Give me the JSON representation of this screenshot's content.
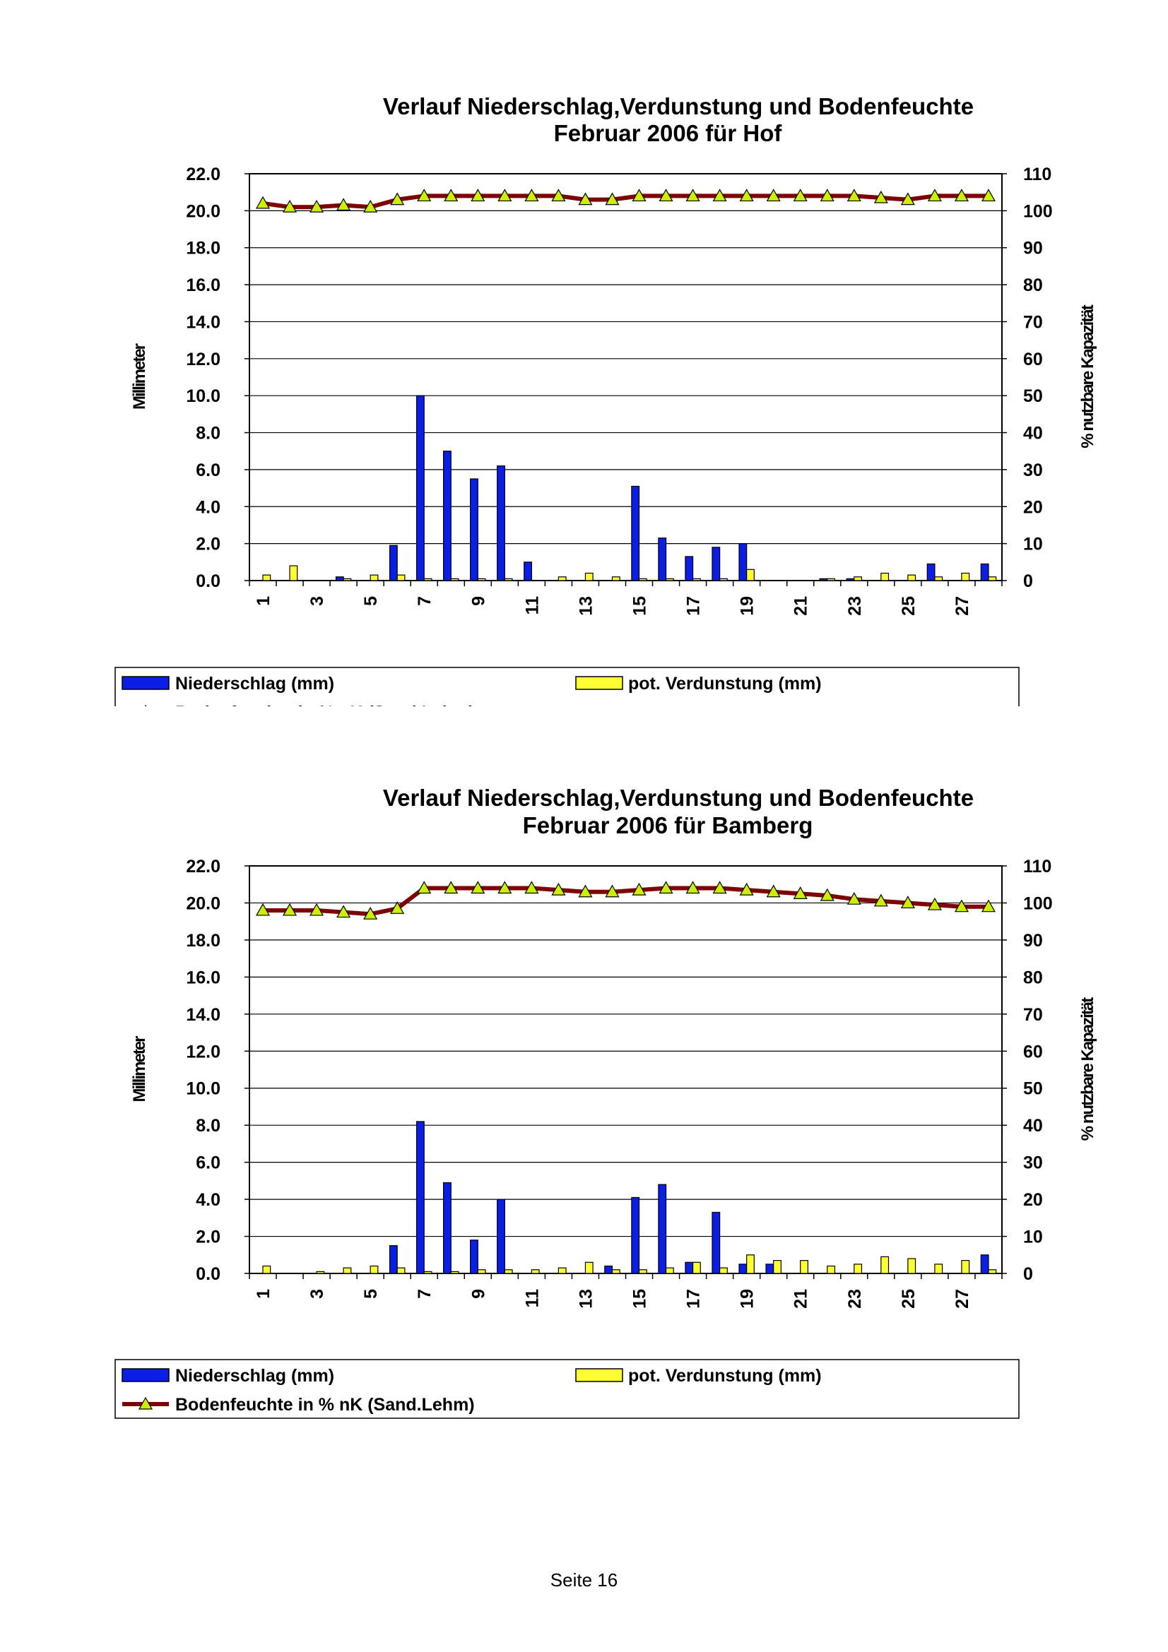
{
  "page": {
    "footer": "Seite 16"
  },
  "chart_data": [
    {
      "type": "bar",
      "title": "Verlauf Niederschlag,Verdunstung und Bodenfeuchte",
      "subtitle": "Februar 2006 für Hof",
      "ylabel": "Millimeter",
      "y2label": "% nutzbare Kapazität",
      "ylim": [
        0,
        22
      ],
      "y2lim": [
        0,
        110
      ],
      "yticks": [
        "22.0",
        "20.0",
        "18.0",
        "16.0",
        "14.0",
        "12.0",
        "10.0",
        "8.0",
        "6.0",
        "4.0",
        "2.0",
        "0.0"
      ],
      "y2ticks": [
        "110",
        "100",
        "90",
        "80",
        "70",
        "60",
        "50",
        "40",
        "30",
        "20",
        "10",
        "0"
      ],
      "categories": [
        1,
        2,
        3,
        4,
        5,
        6,
        7,
        8,
        9,
        10,
        11,
        12,
        13,
        14,
        15,
        16,
        17,
        18,
        19,
        20,
        21,
        22,
        23,
        24,
        25,
        26,
        27,
        28
      ],
      "xtick_labels": [
        "1",
        "3",
        "5",
        "7",
        "9",
        "11",
        "13",
        "15",
        "17",
        "19",
        "21",
        "23",
        "25",
        "27"
      ],
      "legend": {
        "niederschlag": "Niederschlag (mm)",
        "verdunstung": "pot. Verdunstung (mm)",
        "bodenfeuchte": "Bodenfeuchte in % nK (Sand.Lehm)"
      },
      "colors": {
        "niederschlag": "#0a1ee6",
        "verdunstung": "#ffff33",
        "bodenfeuchte": "#7f0000",
        "marker": "#ccee00"
      },
      "series": [
        {
          "name": "Niederschlag (mm)",
          "axis": "left",
          "kind": "bar",
          "values": [
            0.0,
            0.0,
            0.0,
            0.2,
            0.0,
            1.9,
            10.0,
            7.0,
            5.5,
            6.2,
            1.0,
            0.0,
            0.0,
            0.0,
            5.1,
            2.3,
            1.3,
            1.8,
            2.0,
            0.0,
            0.0,
            0.1,
            0.1,
            0.0,
            0.0,
            0.9,
            0.0,
            0.9
          ]
        },
        {
          "name": "pot. Verdunstung (mm)",
          "axis": "left",
          "kind": "bar",
          "values": [
            0.3,
            0.8,
            0.0,
            0.1,
            0.3,
            0.3,
            0.1,
            0.1,
            0.1,
            0.1,
            0.0,
            0.2,
            0.4,
            0.2,
            0.1,
            0.1,
            0.1,
            0.1,
            0.6,
            0.0,
            0.0,
            0.1,
            0.2,
            0.4,
            0.3,
            0.2,
            0.4,
            0.2
          ]
        },
        {
          "name": "Bodenfeuchte in % nK (Sand.Lehm)",
          "axis": "right",
          "kind": "line",
          "values": [
            102,
            101,
            101,
            101.5,
            101,
            103,
            104,
            104,
            104,
            104,
            104,
            104,
            103,
            103,
            104,
            104,
            104,
            104,
            104,
            104,
            104,
            104,
            104,
            103.5,
            103,
            104,
            104,
            104
          ]
        }
      ]
    },
    {
      "type": "bar",
      "title": "Verlauf Niederschlag,Verdunstung und Bodenfeuchte",
      "subtitle": "Februar 2006 für Bamberg",
      "ylabel": "Millimeter",
      "y2label": "% nutzbare Kapazität",
      "ylim": [
        0,
        22
      ],
      "y2lim": [
        0,
        110
      ],
      "yticks": [
        "22.0",
        "20.0",
        "18.0",
        "16.0",
        "14.0",
        "12.0",
        "10.0",
        "8.0",
        "6.0",
        "4.0",
        "2.0",
        "0.0"
      ],
      "y2ticks": [
        "110",
        "100",
        "90",
        "80",
        "70",
        "60",
        "50",
        "40",
        "30",
        "20",
        "10",
        "0"
      ],
      "categories": [
        1,
        2,
        3,
        4,
        5,
        6,
        7,
        8,
        9,
        10,
        11,
        12,
        13,
        14,
        15,
        16,
        17,
        18,
        19,
        20,
        21,
        22,
        23,
        24,
        25,
        26,
        27,
        28
      ],
      "xtick_labels": [
        "1",
        "3",
        "5",
        "7",
        "9",
        "11",
        "13",
        "15",
        "17",
        "19",
        "21",
        "23",
        "25",
        "27"
      ],
      "legend": {
        "niederschlag": "Niederschlag (mm)",
        "verdunstung": "pot. Verdunstung (mm)",
        "bodenfeuchte": "Bodenfeuchte in % nK (Sand.Lehm)"
      },
      "colors": {
        "niederschlag": "#0a1ee6",
        "verdunstung": "#ffff33",
        "bodenfeuchte": "#7f0000",
        "marker": "#ccee00"
      },
      "series": [
        {
          "name": "Niederschlag (mm)",
          "axis": "left",
          "kind": "bar",
          "values": [
            0.0,
            0.0,
            0.0,
            0.0,
            0.0,
            1.5,
            8.2,
            4.9,
            1.8,
            4.0,
            0.0,
            0.0,
            0.0,
            0.4,
            4.1,
            4.8,
            0.6,
            3.3,
            0.5,
            0.5,
            0.0,
            0.0,
            0.0,
            0.0,
            0.0,
            0.0,
            0.0,
            1.0
          ]
        },
        {
          "name": "pot. Verdunstung (mm)",
          "axis": "left",
          "kind": "bar",
          "values": [
            0.4,
            0.0,
            0.1,
            0.3,
            0.4,
            0.3,
            0.1,
            0.1,
            0.2,
            0.2,
            0.2,
            0.3,
            0.6,
            0.2,
            0.2,
            0.3,
            0.6,
            0.3,
            1.0,
            0.7,
            0.7,
            0.4,
            0.5,
            0.9,
            0.8,
            0.5,
            0.7,
            0.2
          ]
        },
        {
          "name": "Bodenfeuchte in % nK (Sand.Lehm)",
          "axis": "right",
          "kind": "line",
          "values": [
            98,
            98,
            98,
            97.5,
            97,
            98.5,
            104,
            104,
            104,
            104,
            104,
            103.5,
            103,
            103,
            103.5,
            104,
            104,
            104,
            103.5,
            103,
            102.5,
            102,
            101,
            100.5,
            100,
            99.5,
            99,
            99
          ]
        }
      ]
    }
  ]
}
